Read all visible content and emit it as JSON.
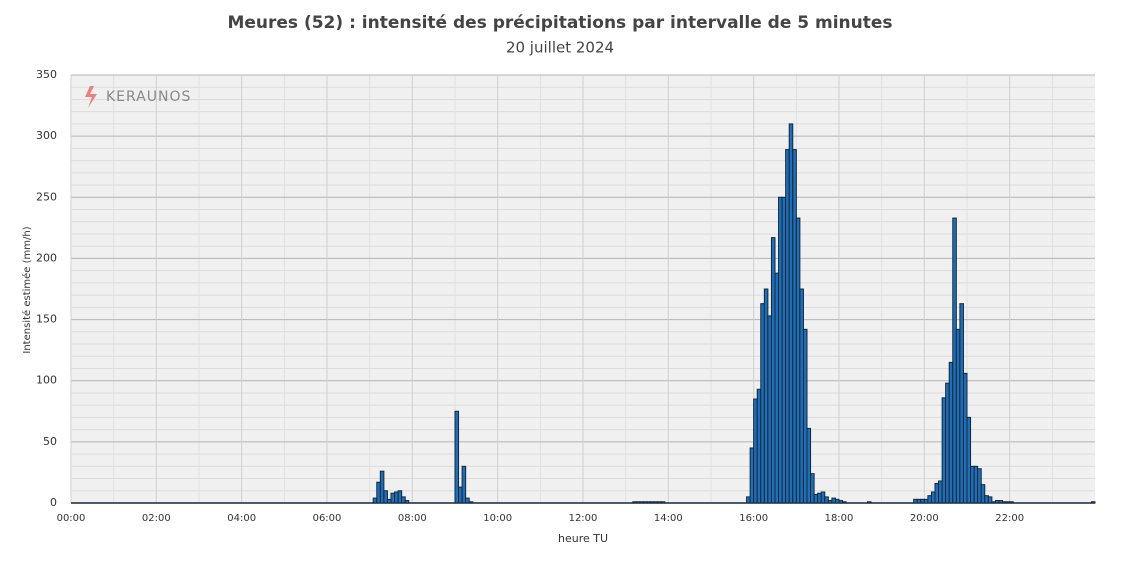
{
  "chart_data": {
    "type": "bar",
    "title": "Meures (52) : intensité des précipitations  par intervalle de 5 minutes",
    "subtitle": "20 juillet 2024",
    "x_label": "heure TU",
    "y_label": "Intensité estimée (mm/h)",
    "watermark": "KERAUNOS",
    "color": "#1f6fb8",
    "edge_color": "#14283c",
    "x": [
      425,
      430,
      435,
      440,
      445,
      450,
      455,
      460,
      465,
      470,
      540,
      545,
      550,
      555,
      560,
      790,
      795,
      800,
      805,
      810,
      815,
      820,
      825,
      830,
      950,
      955,
      960,
      965,
      970,
      975,
      980,
      985,
      990,
      995,
      1000,
      1005,
      1010,
      1015,
      1020,
      1025,
      1030,
      1035,
      1040,
      1045,
      1050,
      1055,
      1060,
      1065,
      1070,
      1075,
      1080,
      1085,
      1120,
      1185,
      1190,
      1195,
      1200,
      1205,
      1210,
      1215,
      1220,
      1225,
      1230,
      1235,
      1240,
      1245,
      1250,
      1255,
      1260,
      1265,
      1270,
      1275,
      1280,
      1285,
      1290,
      1295,
      1300,
      1305,
      1310,
      1315,
      1320,
      1435
    ],
    "values": [
      4,
      17,
      26,
      10,
      3,
      8,
      9,
      10,
      5,
      2,
      75,
      13,
      30,
      4,
      1,
      1,
      1,
      1,
      1,
      1,
      1,
      1,
      1,
      1,
      5,
      45,
      85,
      93,
      163,
      175,
      153,
      217,
      188,
      250,
      250,
      289,
      310,
      289,
      233,
      175,
      142,
      61,
      24,
      7,
      8,
      9,
      5,
      2,
      4,
      3,
      2,
      1,
      1,
      3,
      3,
      3,
      3,
      6,
      9,
      16,
      18,
      86,
      98,
      115,
      233,
      142,
      163,
      106,
      70,
      30,
      30,
      28,
      15,
      6,
      5,
      1,
      2,
      2,
      1,
      1,
      1,
      1
    ],
    "xlim": [
      0,
      1440
    ],
    "xticks": [
      {
        "value": 0,
        "label": "00:00"
      },
      {
        "value": 120,
        "label": "02:00"
      },
      {
        "value": 240,
        "label": "04:00"
      },
      {
        "value": 360,
        "label": "06:00"
      },
      {
        "value": 480,
        "label": "08:00"
      },
      {
        "value": 600,
        "label": "10:00"
      },
      {
        "value": 720,
        "label": "12:00"
      },
      {
        "value": 840,
        "label": "14:00"
      },
      {
        "value": 960,
        "label": "16:00"
      },
      {
        "value": 1080,
        "label": "18:00"
      },
      {
        "value": 1200,
        "label": "20:00"
      },
      {
        "value": 1320,
        "label": "22:00"
      }
    ],
    "ylim": [
      0,
      350
    ],
    "yticks": [
      0,
      50,
      100,
      150,
      200,
      250,
      300,
      350
    ],
    "grid": true
  }
}
